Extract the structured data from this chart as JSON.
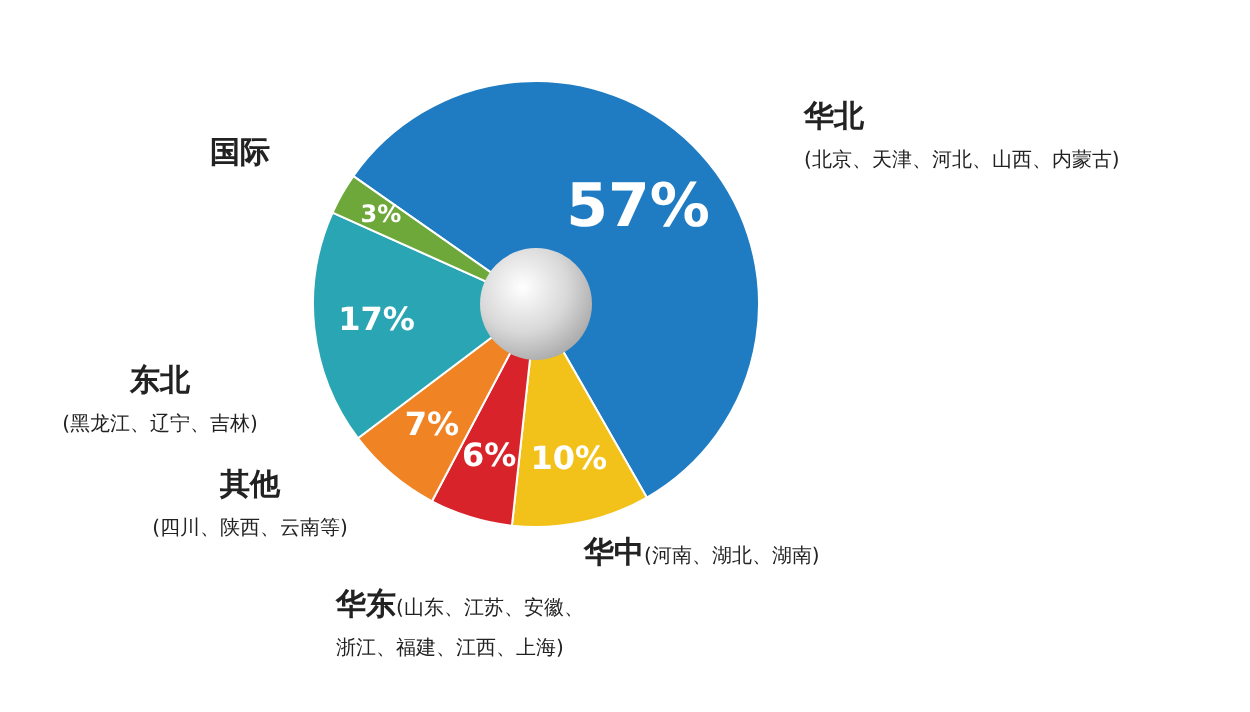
{
  "chart_data": {
    "type": "donut",
    "categories": [
      "华北",
      "华中",
      "华东",
      "其他",
      "东北",
      "国际"
    ],
    "values": [
      57,
      10,
      6,
      7,
      17,
      3
    ],
    "colors": [
      "#1f7cc2",
      "#f2c21b",
      "#d8232a",
      "#f08424",
      "#2aa5b3",
      "#6ea83a"
    ],
    "value_labels": [
      "57%",
      "10%",
      "6%",
      "7%",
      "17%",
      "3%"
    ],
    "legend": false,
    "annotations": [
      {
        "text": "(北京、天津、河北、山西、内蒙古)",
        "x": "华北"
      },
      {
        "text": "(河南、湖北、湖南)",
        "x": "华中"
      },
      {
        "text": "(山东、江苏、安徽、浙江、福建、江西、上海)",
        "x": "华东"
      },
      {
        "text": "(四川、陕西、云南等)",
        "x": "其他"
      },
      {
        "text": "(黑龙江、辽宁、吉林)",
        "x": "东北"
      }
    ]
  }
}
